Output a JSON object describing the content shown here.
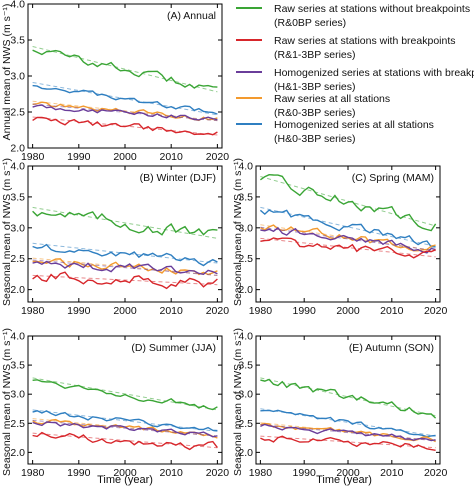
{
  "figure": {
    "left_ylabel_top": "Annual mean of NWS (m s⁻¹)",
    "left_ylabel_mid": "Seasonal mean of NWS (m s⁻¹)",
    "left_ylabel_bot": "Seasonal mean of NWS (m s⁻¹)",
    "right_ylabel_mid": "Seasonal mean of NWS (m s⁻¹)",
    "right_ylabel_bot": "Seasonal mean of NWS (m s⁻¹)",
    "xlabel_left": "Time (year)",
    "xlabel_right": "Time (year)"
  },
  "legend": [
    {
      "line1": "Raw series at stations without breakpoints",
      "line2": "(R&0BP series)",
      "color": "#3aa535"
    },
    {
      "line1": "Raw series at stations with breakpoints",
      "line2": "(R&1-3BP series)",
      "color": "#d7262b"
    },
    {
      "line1": "Homogenized series at stations with breakpoints",
      "line2": "(H&1-3BP series)",
      "color": "#6a3d9a"
    },
    {
      "line1": "Raw series at all stations",
      "line2": "(R&0-3BP series)",
      "color": "#f39a2e"
    },
    {
      "line1": "Homogenized series at all stations",
      "line2": "(H&0-3BP series)",
      "color": "#2f7fc1"
    }
  ],
  "chart_data": [
    {
      "type": "line",
      "panel_label": "(A) Annual",
      "xlim": [
        1979,
        2021
      ],
      "ylim": [
        2.0,
        4.0
      ],
      "xticks": [
        "1980",
        "1990",
        "2000",
        "2010",
        "2020"
      ],
      "yticks": [
        "2.0",
        "2.5",
        "3.0",
        "3.5",
        "4.0"
      ],
      "trend_lines": "dashed",
      "series": [
        {
          "key": "r0",
          "color": "#3aa535",
          "start": 3.38,
          "end": 2.8,
          "noise": 0.05
        },
        {
          "key": "h0",
          "color": "#2f7fc1",
          "start": 2.88,
          "end": 2.48,
          "noise": 0.03
        },
        {
          "key": "r03",
          "color": "#f39a2e",
          "start": 2.62,
          "end": 2.4,
          "noise": 0.03
        },
        {
          "key": "h13",
          "color": "#6a3d9a",
          "start": 2.58,
          "end": 2.4,
          "noise": 0.03
        },
        {
          "key": "r13",
          "color": "#d7262b",
          "start": 2.4,
          "end": 2.2,
          "noise": 0.04
        }
      ]
    },
    {
      "type": "line",
      "panel_label": "(B) Winter (DJF)",
      "xlim": [
        1979,
        2021
      ],
      "ylim": [
        1.8,
        4.0
      ],
      "xticks": [
        "1980",
        "1990",
        "2000",
        "2010",
        "2020"
      ],
      "yticks": [
        "2.0",
        "2.5",
        "3.0",
        "3.5",
        "4.0"
      ],
      "trend_lines": "dashed",
      "series": [
        {
          "key": "r0",
          "color": "#3aa535",
          "start": 3.3,
          "end": 2.85,
          "noise": 0.09
        },
        {
          "key": "h0",
          "color": "#2f7fc1",
          "start": 2.72,
          "end": 2.45,
          "noise": 0.06
        },
        {
          "key": "r03",
          "color": "#f39a2e",
          "start": 2.48,
          "end": 2.25,
          "noise": 0.06
        },
        {
          "key": "h13",
          "color": "#6a3d9a",
          "start": 2.45,
          "end": 2.25,
          "noise": 0.06
        },
        {
          "key": "r13",
          "color": "#d7262b",
          "start": 2.2,
          "end": 2.1,
          "noise": 0.08
        }
      ]
    },
    {
      "type": "line",
      "panel_label": "(C) Spring (MAM)",
      "xlim": [
        1979,
        2021
      ],
      "ylim": [
        1.8,
        4.0
      ],
      "xticks": [
        "1980",
        "1990",
        "2000",
        "2010",
        "2020"
      ],
      "yticks": [
        "2.0",
        "2.5",
        "3.0",
        "3.5",
        "4.0"
      ],
      "trend_lines": "dashed",
      "series": [
        {
          "key": "r0",
          "color": "#3aa535",
          "start": 3.8,
          "end": 3.05,
          "noise": 0.08
        },
        {
          "key": "h0",
          "color": "#2f7fc1",
          "start": 3.3,
          "end": 2.72,
          "noise": 0.06
        },
        {
          "key": "r03",
          "color": "#f39a2e",
          "start": 3.02,
          "end": 2.65,
          "noise": 0.06
        },
        {
          "key": "h13",
          "color": "#6a3d9a",
          "start": 2.98,
          "end": 2.65,
          "noise": 0.06
        },
        {
          "key": "r13",
          "color": "#d7262b",
          "start": 2.8,
          "end": 2.55,
          "noise": 0.07
        }
      ]
    },
    {
      "type": "line",
      "panel_label": "(D) Summer (JJA)",
      "xlim": [
        1979,
        2021
      ],
      "ylim": [
        1.8,
        4.0
      ],
      "xticks": [
        "1980",
        "1990",
        "2000",
        "2010",
        "2020"
      ],
      "yticks": [
        "2.0",
        "2.5",
        "3.0",
        "3.5",
        "4.0"
      ],
      "trend_lines": "dashed",
      "series": [
        {
          "key": "r0",
          "color": "#3aa535",
          "start": 3.25,
          "end": 2.75,
          "noise": 0.05
        },
        {
          "key": "h0",
          "color": "#2f7fc1",
          "start": 2.7,
          "end": 2.38,
          "noise": 0.04
        },
        {
          "key": "r03",
          "color": "#f39a2e",
          "start": 2.55,
          "end": 2.3,
          "noise": 0.04
        },
        {
          "key": "h13",
          "color": "#6a3d9a",
          "start": 2.52,
          "end": 2.3,
          "noise": 0.04
        },
        {
          "key": "r13",
          "color": "#d7262b",
          "start": 2.3,
          "end": 2.1,
          "noise": 0.06
        }
      ]
    },
    {
      "type": "line",
      "panel_label": "(E) Autumn (SON)",
      "xlim": [
        1979,
        2021
      ],
      "ylim": [
        1.8,
        4.0
      ],
      "xticks": [
        "1980",
        "1990",
        "2000",
        "2010",
        "2020"
      ],
      "yticks": [
        "2.0",
        "2.5",
        "3.0",
        "3.5",
        "4.0"
      ],
      "trend_lines": "dashed",
      "series": [
        {
          "key": "r0",
          "color": "#3aa535",
          "start": 3.25,
          "end": 2.65,
          "noise": 0.06
        },
        {
          "key": "h0",
          "color": "#2f7fc1",
          "start": 2.72,
          "end": 2.3,
          "noise": 0.04
        },
        {
          "key": "r03",
          "color": "#f39a2e",
          "start": 2.48,
          "end": 2.22,
          "noise": 0.04
        },
        {
          "key": "h13",
          "color": "#6a3d9a",
          "start": 2.45,
          "end": 2.22,
          "noise": 0.04
        },
        {
          "key": "r13",
          "color": "#d7262b",
          "start": 2.25,
          "end": 2.1,
          "noise": 0.05
        }
      ]
    }
  ]
}
